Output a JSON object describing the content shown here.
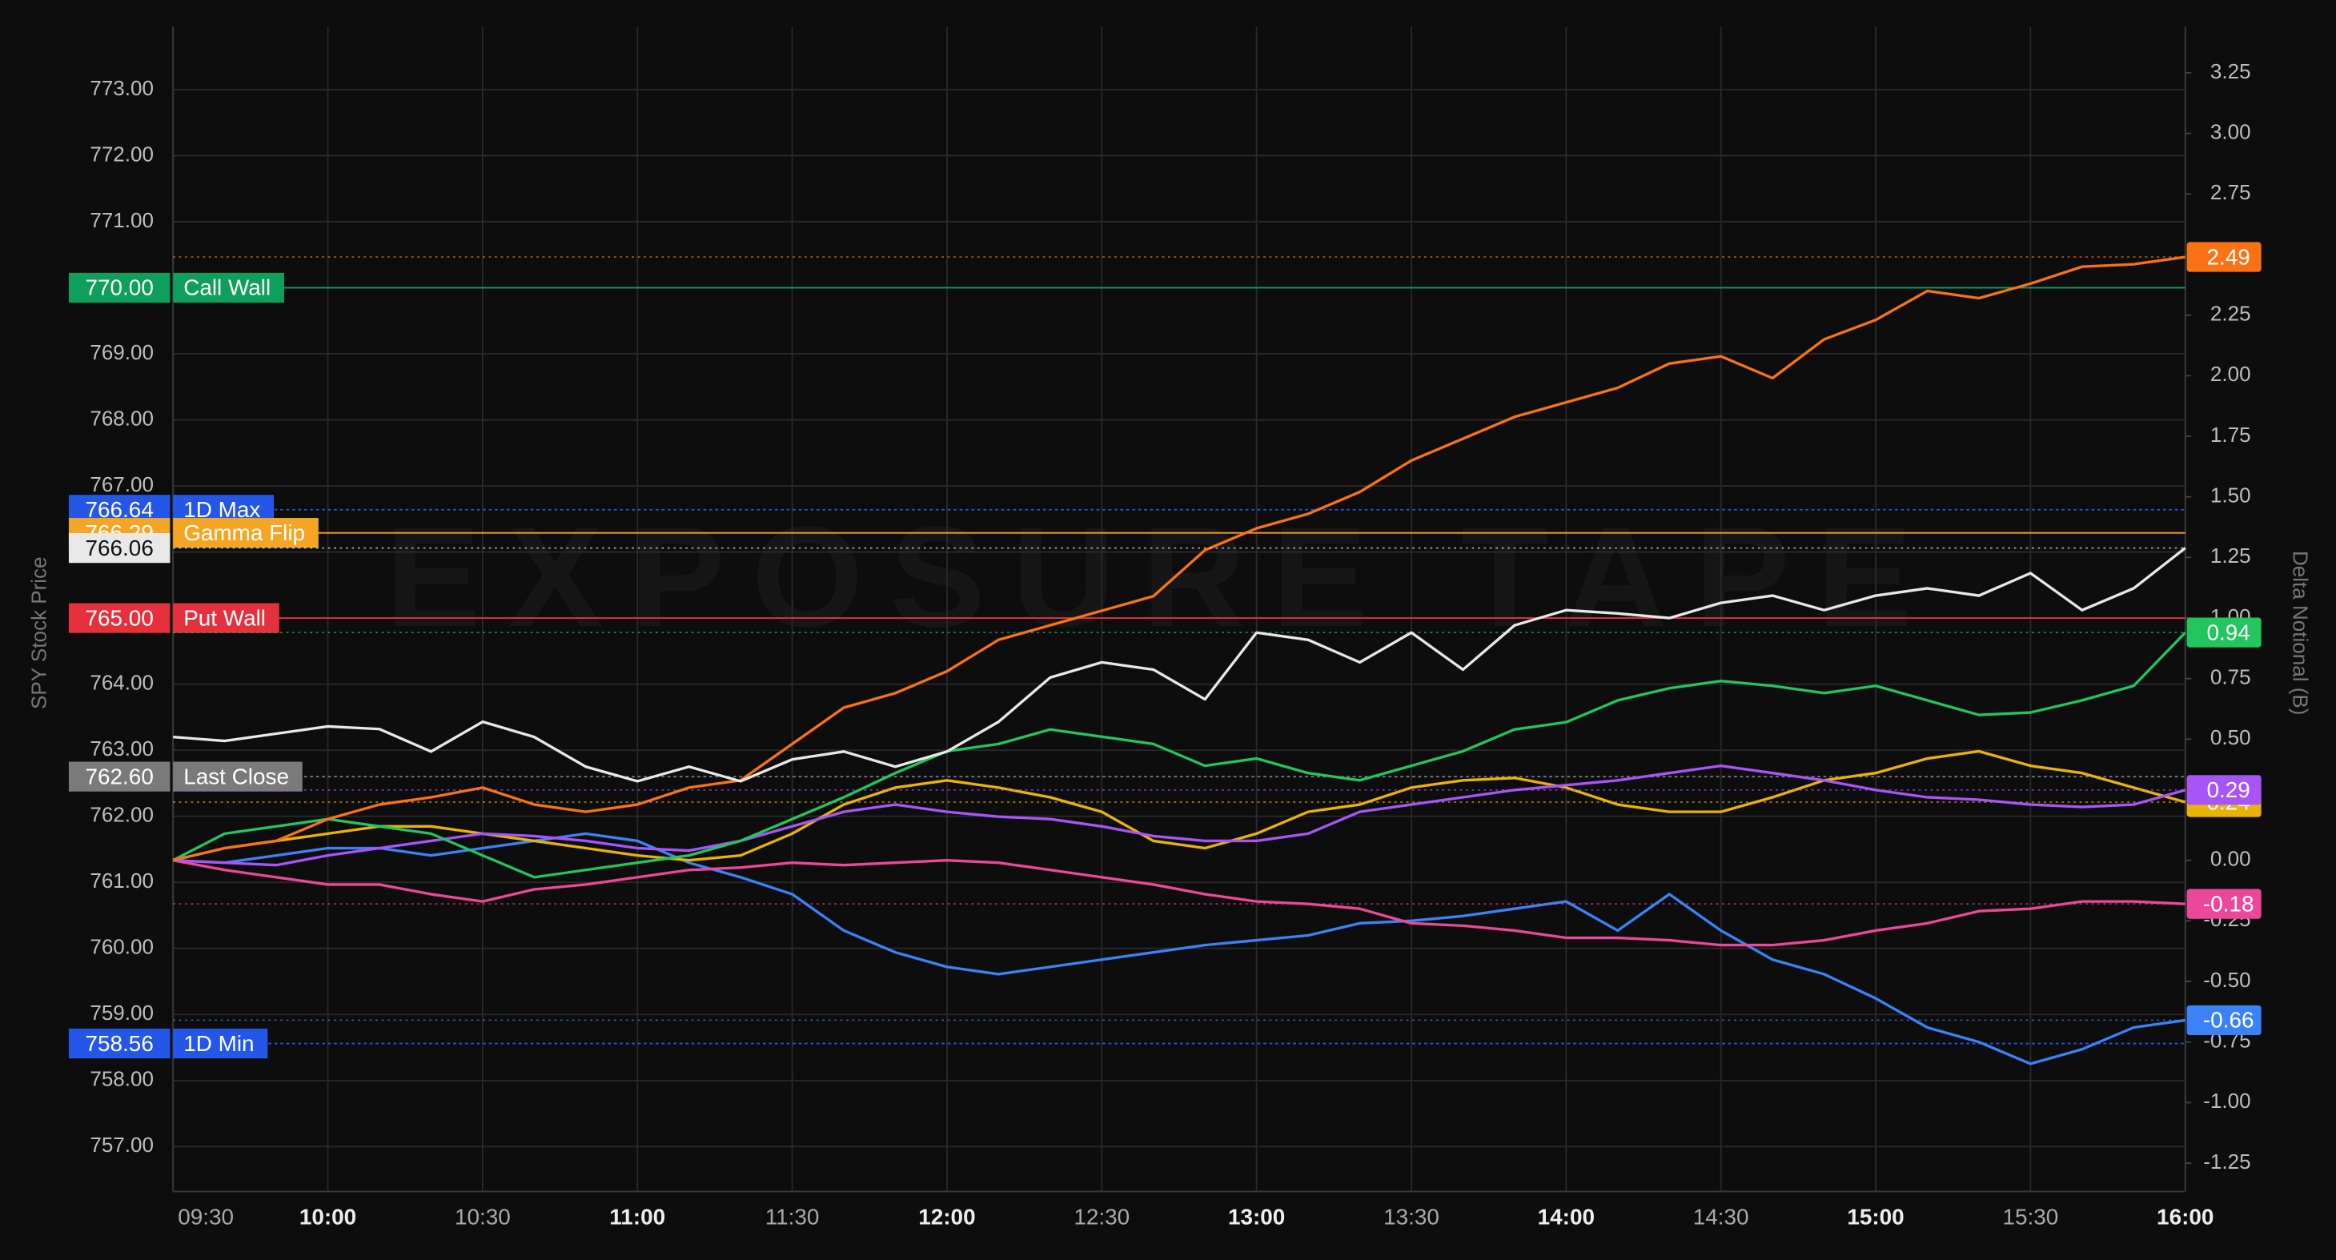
{
  "chart_data": {
    "type": "line",
    "y_label": "SPY Stock Price",
    "y2_label": "Delta Notional (B)",
    "watermark": "EXPOSURE TAPE",
    "x": [
      "09:30",
      "09:40",
      "09:50",
      "10:00",
      "10:10",
      "10:20",
      "10:30",
      "10:40",
      "10:50",
      "11:00",
      "11:10",
      "11:20",
      "11:30",
      "11:40",
      "11:50",
      "12:00",
      "12:10",
      "12:20",
      "12:30",
      "12:40",
      "12:50",
      "13:00",
      "13:10",
      "13:20",
      "13:30",
      "13:40",
      "13:50",
      "14:00",
      "14:10",
      "14:20",
      "14:30",
      "14:40",
      "14:50",
      "15:00",
      "15:10",
      "15:20",
      "15:30",
      "15:40",
      "15:50",
      "16:00"
    ],
    "xlim": [
      "09:30",
      "16:00"
    ],
    "xticks": [
      "09:30",
      "10:00",
      "10:30",
      "11:00",
      "11:30",
      "12:00",
      "12:30",
      "13:00",
      "13:30",
      "14:00",
      "14:30",
      "15:00",
      "15:30",
      "16:00"
    ],
    "ylim": [
      756.32,
      773.95
    ],
    "yticks": [
      {
        "value": 757,
        "label": "757.00"
      },
      {
        "value": 758,
        "label": "758.00"
      },
      {
        "value": 759,
        "label": "759.00"
      },
      {
        "value": 760,
        "label": "760.00"
      },
      {
        "value": 761,
        "label": "761.00"
      },
      {
        "value": 762,
        "label": "762.00"
      },
      {
        "value": 763,
        "label": "763.00"
      },
      {
        "value": 764,
        "label": "764.00"
      },
      {
        "value": 765,
        "label": "765.00"
      },
      {
        "value": 766,
        "label": "766.00"
      },
      {
        "value": 767,
        "label": "767.00"
      },
      {
        "value": 768,
        "label": "768.00"
      },
      {
        "value": 769,
        "label": "769.00"
      },
      {
        "value": 770,
        "label": "770.00"
      },
      {
        "value": 771,
        "label": "771.00"
      },
      {
        "value": 772,
        "label": "772.00"
      },
      {
        "value": 773,
        "label": "773.00"
      }
    ],
    "y2lim": [
      -1.367,
      3.44
    ],
    "y2ticks": [
      -1.25,
      {
        "value": -1,
        "label": "-1.00"
      },
      -0.75,
      {
        "value": -0.5,
        "label": "-0.50"
      },
      -0.25,
      {
        "value": 0,
        "label": "0.00"
      },
      0.25,
      {
        "value": 0.5,
        "label": "0.50"
      },
      0.75,
      {
        "value": 1,
        "label": "1.00"
      },
      1.25,
      {
        "value": 1.5,
        "label": "1.50"
      },
      1.75,
      {
        "value": 2,
        "label": "2.00"
      },
      2.25,
      {
        "value": 2.5,
        "label": "2.50"
      },
      2.75,
      {
        "value": 3,
        "label": "3.00"
      },
      3.25
    ],
    "grid": true,
    "levels": [
      {
        "name": "Call Wall",
        "value": 770,
        "label": "770.00",
        "color": "#0e9f5a",
        "line": "solid"
      },
      {
        "name": "1D Max",
        "value": 766.64,
        "color": "#2456e8",
        "line": "dotted"
      },
      {
        "name": "Gamma Flip",
        "value": 766.29,
        "color": "#f5a524",
        "line": "solid"
      },
      {
        "name": "Put Wall",
        "value": 765,
        "label": "765.00",
        "color": "#e5313d",
        "line": "solid"
      },
      {
        "name": "Last Close",
        "value": 762.6,
        "label": "762.60",
        "color": "#7a7a7a",
        "line": "dotted"
      },
      {
        "name": "1D Min",
        "value": 758.56,
        "color": "#2456e8",
        "line": "dotted"
      }
    ],
    "series": [
      {
        "color": "#e8e8e8",
        "axis": "y",
        "values": [
          763.2,
          763.14,
          763.25,
          763.36,
          763.32,
          762.98,
          763.43,
          763.2,
          762.75,
          762.53,
          762.75,
          762.53,
          762.86,
          762.98,
          762.75,
          762.98,
          763.43,
          764.1,
          764.33,
          764.22,
          763.77,
          764.78,
          764.67,
          764.33,
          764.78,
          764.22,
          764.89,
          765.12,
          765.07,
          765.0,
          765.23,
          765.34,
          765.12,
          765.34,
          765.45,
          765.34,
          765.68,
          765.12,
          765.45,
          766.06
        ]
      },
      {
        "color": "#f97316",
        "axis": "y2",
        "values": [
          0,
          0.05,
          0.08,
          0.17,
          0.23,
          0.26,
          0.3,
          0.23,
          0.2,
          0.23,
          0.3,
          0.33,
          0.48,
          0.63,
          0.69,
          0.78,
          0.91,
          0.97,
          1.03,
          1.09,
          1.28,
          1.37,
          1.43,
          1.52,
          1.65,
          1.74,
          1.83,
          1.89,
          1.95,
          2.05,
          2.08,
          1.99,
          2.15,
          2.23,
          2.35,
          2.32,
          2.38,
          2.45,
          2.46,
          2.49
        ]
      },
      {
        "color": "#22c55e",
        "axis": "y2",
        "values": [
          0,
          0.11,
          0.14,
          0.17,
          0.14,
          0.11,
          0.02,
          -0.07,
          -0.04,
          -0.01,
          0.02,
          0.08,
          0.17,
          0.26,
          0.36,
          0.45,
          0.48,
          0.54,
          0.51,
          0.48,
          0.39,
          0.42,
          0.36,
          0.33,
          0.39,
          0.45,
          0.54,
          0.57,
          0.66,
          0.71,
          0.74,
          0.72,
          0.69,
          0.72,
          0.66,
          0.6,
          0.61,
          0.66,
          0.72,
          0.94
        ]
      },
      {
        "color": "#a855f7",
        "axis": "y2",
        "values": [
          0,
          -0.01,
          -0.02,
          0.02,
          0.05,
          0.08,
          0.11,
          0.1,
          0.08,
          0.05,
          0.04,
          0.08,
          0.14,
          0.2,
          0.23,
          0.2,
          0.18,
          0.17,
          0.14,
          0.1,
          0.08,
          0.08,
          0.11,
          0.2,
          0.23,
          0.26,
          0.29,
          0.31,
          0.33,
          0.36,
          0.39,
          0.36,
          0.33,
          0.29,
          0.26,
          0.25,
          0.23,
          0.22,
          0.23,
          0.29
        ]
      },
      {
        "color": "#eab308",
        "axis": "y2",
        "values": [
          0,
          0.05,
          0.08,
          0.11,
          0.14,
          0.14,
          0.11,
          0.08,
          0.05,
          0.02,
          0,
          0.02,
          0.11,
          0.23,
          0.3,
          0.33,
          0.3,
          0.26,
          0.2,
          0.08,
          0.05,
          0.11,
          0.2,
          0.23,
          0.3,
          0.33,
          0.34,
          0.3,
          0.23,
          0.2,
          0.2,
          0.26,
          0.33,
          0.36,
          0.42,
          0.45,
          0.39,
          0.36,
          0.3,
          0.24
        ]
      },
      {
        "color": "#ec4899",
        "axis": "y2",
        "values": [
          0,
          -0.04,
          -0.07,
          -0.1,
          -0.1,
          -0.14,
          -0.17,
          -0.12,
          -0.1,
          -0.07,
          -0.04,
          -0.03,
          -0.01,
          -0.02,
          -0.01,
          0,
          -0.01,
          -0.04,
          -0.07,
          -0.1,
          -0.14,
          -0.17,
          -0.18,
          -0.2,
          -0.26,
          -0.27,
          -0.29,
          -0.32,
          -0.32,
          -0.33,
          -0.35,
          -0.35,
          -0.33,
          -0.29,
          -0.26,
          -0.21,
          -0.2,
          -0.17,
          -0.17,
          -0.18
        ]
      },
      {
        "color": "#3b82f6",
        "axis": "y2",
        "values": [
          0,
          -0.01,
          0.02,
          0.05,
          0.05,
          0.02,
          0.05,
          0.08,
          0.11,
          0.08,
          -0.01,
          -0.07,
          -0.14,
          -0.29,
          -0.38,
          -0.44,
          -0.47,
          -0.44,
          -0.41,
          -0.38,
          -0.35,
          -0.33,
          -0.31,
          -0.26,
          -0.25,
          -0.23,
          -0.2,
          -0.17,
          -0.29,
          -0.14,
          -0.29,
          -0.41,
          -0.47,
          -0.57,
          -0.69,
          -0.75,
          -0.84,
          -0.78,
          -0.69,
          -0.66
        ]
      }
    ]
  }
}
